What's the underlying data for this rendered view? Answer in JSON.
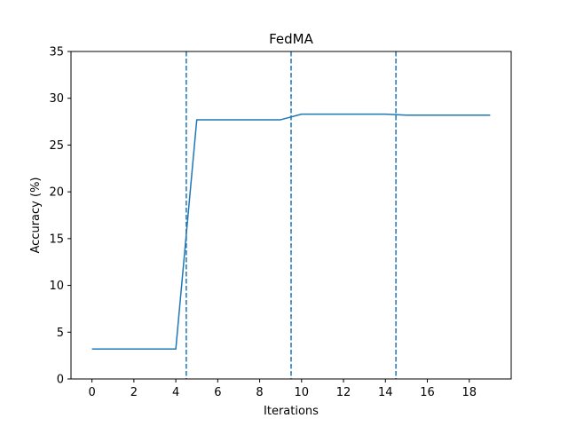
{
  "chart_data": {
    "type": "line",
    "title": "FedMA",
    "xlabel": "Iterations",
    "ylabel": "Accuracy (%)",
    "xlim": [
      -1,
      20
    ],
    "ylim": [
      0,
      35
    ],
    "xticks": [
      0,
      2,
      4,
      6,
      8,
      10,
      12,
      14,
      16,
      18
    ],
    "yticks": [
      0,
      5,
      10,
      15,
      20,
      25,
      30,
      35
    ],
    "grid": false,
    "series": [
      {
        "x": [
          0,
          1,
          2,
          3,
          4,
          5,
          6,
          7,
          8,
          9,
          10,
          11,
          12,
          13,
          14,
          15,
          16,
          17,
          18,
          19
        ],
        "y": [
          3.2,
          3.2,
          3.2,
          3.2,
          3.2,
          27.7,
          27.7,
          27.7,
          27.7,
          27.7,
          28.3,
          28.3,
          28.3,
          28.3,
          28.3,
          28.2,
          28.2,
          28.2,
          28.2,
          28.2
        ],
        "color": "#1f77b4"
      }
    ],
    "vlines": [
      {
        "x": 4.5,
        "style": "dashed",
        "color": "#1f77b4"
      },
      {
        "x": 9.5,
        "style": "dashed",
        "color": "#1f77b4"
      },
      {
        "x": 14.5,
        "style": "dashed",
        "color": "#1f77b4"
      }
    ]
  }
}
